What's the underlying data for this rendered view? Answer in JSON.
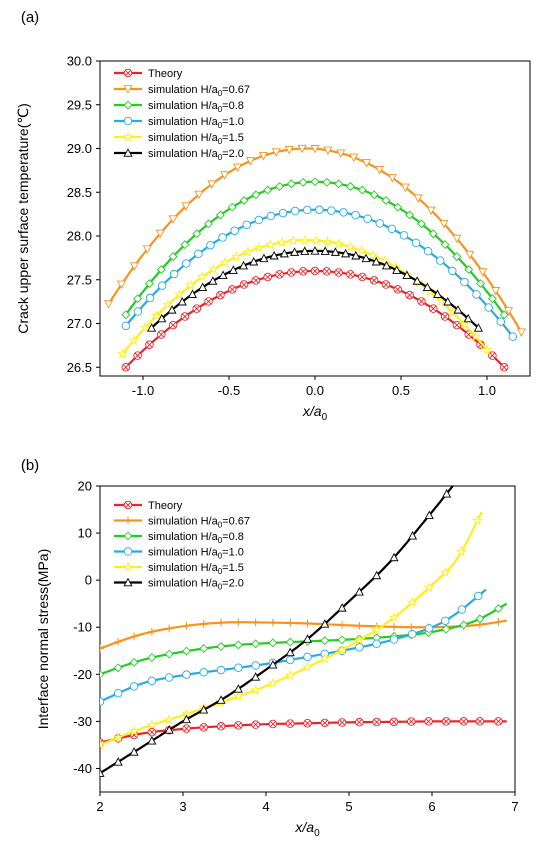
{
  "chart_data": [
    {
      "type": "line",
      "panel_label": "(a)",
      "xlabel": "x/a",
      "xlabel_sub": "0",
      "ylabel": "Crack upper surface temperature(℃)",
      "xlim": [
        -1.25,
        1.25
      ],
      "ylim": [
        26.4,
        30.0
      ],
      "x_ticks": [
        -1.0,
        -0.5,
        0.0,
        0.5,
        1.0
      ],
      "x_tick_labels": [
        "-1.0",
        "-0.5",
        "0.0",
        "0.5",
        "1.0"
      ],
      "y_ticks": [
        26.5,
        27.0,
        27.5,
        28.0,
        28.5,
        29.0,
        29.5,
        30.0
      ],
      "y_tick_labels": [
        "26.5",
        "27.0",
        "27.5",
        "28.0",
        "28.5",
        "29.0",
        "29.5",
        "30.0"
      ],
      "legend_position": "top-left",
      "grid": false,
      "series": [
        {
          "name": "Theory",
          "name_sub": "",
          "name_tail": "",
          "color": "#e8262a",
          "marker": "circle-x",
          "x_range": [
            -1.1,
            1.1
          ],
          "peak_x": 0.0,
          "peak": 27.6,
          "edge": 26.5,
          "exp": 2.0
        },
        {
          "name": "simulation H/a",
          "name_sub": "0",
          "name_tail": "=0.67",
          "color": "#f7931e",
          "marker": "triangle-down",
          "x_range": [
            -1.2,
            1.2
          ],
          "peak_x": -0.05,
          "peak": 29.0,
          "edge": 26.9,
          "exp": 2.0
        },
        {
          "name": "simulation H/a",
          "name_sub": "0",
          "name_tail": "=0.8",
          "color": "#22cc22",
          "marker": "diamond",
          "x_range": [
            -1.1,
            1.1
          ],
          "peak_x": 0.0,
          "peak": 28.62,
          "edge": 27.1,
          "exp": 2.0
        },
        {
          "name": "simulation H/a",
          "name_sub": "0",
          "name_tail": "=1.0",
          "color": "#29abe2",
          "marker": "circle",
          "x_range": [
            -1.1,
            1.15
          ],
          "peak_x": 0.0,
          "peak": 28.3,
          "edge": 26.85,
          "exp": 2.0
        },
        {
          "name": "simulation H/a",
          "name_sub": "0",
          "name_tail": "=1.5",
          "color": "#ffef1a",
          "marker": "star",
          "x_range": [
            -1.12,
            1.0
          ],
          "peak_x": -0.05,
          "peak": 27.95,
          "edge": 26.65,
          "exp": 2.0
        },
        {
          "name": "simulation H/a",
          "name_sub": "0",
          "name_tail": "=2.0",
          "color": "#000000",
          "marker": "triangle-up",
          "x_range": [
            -0.95,
            0.95
          ],
          "peak_x": 0.0,
          "peak": 27.83,
          "edge": 26.95,
          "exp": 2.0
        }
      ]
    },
    {
      "type": "line",
      "panel_label": "(b)",
      "xlabel": "x/a",
      "xlabel_sub": "0",
      "ylabel": "Interface normal stress(MPa)",
      "xlim": [
        2,
        7
      ],
      "ylim": [
        -45,
        20
      ],
      "x_ticks": [
        2,
        3,
        4,
        5,
        6,
        7
      ],
      "x_tick_labels": [
        "2",
        "3",
        "4",
        "5",
        "6",
        "7"
      ],
      "y_ticks": [
        -40,
        -30,
        -20,
        -10,
        0,
        10,
        20
      ],
      "y_tick_labels": [
        "-40",
        "-30",
        "-20",
        "-10",
        "0",
        "10",
        "20"
      ],
      "legend_position": "top-left",
      "grid": false,
      "series": [
        {
          "name": "Theory",
          "name_sub": "",
          "name_tail": "",
          "color": "#e8262a",
          "marker": "circle-x",
          "x": [
            2.0,
            2.5,
            3.0,
            3.5,
            4.0,
            4.5,
            5.0,
            5.5,
            6.0,
            6.5,
            6.9
          ],
          "y": [
            -34.5,
            -32.6,
            -31.6,
            -31.0,
            -30.6,
            -30.4,
            -30.2,
            -30.1,
            -30.0,
            -30.0,
            -30.0
          ]
        },
        {
          "name": "simulation H/a",
          "name_sub": "0",
          "name_tail": "=0.67",
          "color": "#f7931e",
          "marker": "plus",
          "x": [
            2.0,
            2.5,
            3.0,
            3.5,
            4.0,
            4.5,
            5.0,
            5.5,
            6.0,
            6.5,
            6.9
          ],
          "y": [
            -14.5,
            -11.5,
            -9.8,
            -9.0,
            -9.0,
            -9.2,
            -9.6,
            -9.9,
            -10.0,
            -9.6,
            -8.6
          ]
        },
        {
          "name": "simulation H/a",
          "name_sub": "0",
          "name_tail": "=0.8",
          "color": "#22cc22",
          "marker": "diamond",
          "x": [
            2.0,
            2.5,
            3.0,
            3.5,
            4.0,
            4.5,
            5.0,
            5.5,
            6.0,
            6.5,
            6.9
          ],
          "y": [
            -20.0,
            -17.0,
            -15.2,
            -14.0,
            -13.4,
            -13.0,
            -12.6,
            -12.0,
            -11.0,
            -8.8,
            -5.0
          ]
        },
        {
          "name": "simulation H/a",
          "name_sub": "0",
          "name_tail": "=1.0",
          "color": "#29abe2",
          "marker": "circle",
          "x": [
            2.0,
            2.5,
            3.0,
            3.5,
            4.0,
            4.5,
            5.0,
            5.5,
            6.0,
            6.3,
            6.65
          ],
          "y": [
            -25.8,
            -22.0,
            -20.2,
            -19.0,
            -17.8,
            -16.3,
            -14.7,
            -12.8,
            -10.0,
            -7.0,
            -2.0
          ]
        },
        {
          "name": "simulation H/a",
          "name_sub": "0",
          "name_tail": "=1.5",
          "color": "#ffef1a",
          "marker": "star",
          "x": [
            2.0,
            2.5,
            3.0,
            3.5,
            4.0,
            4.5,
            5.0,
            5.5,
            6.0,
            6.3,
            6.6
          ],
          "y": [
            -35.0,
            -31.5,
            -28.7,
            -25.7,
            -22.5,
            -18.5,
            -14.0,
            -8.5,
            -1.0,
            4.5,
            14.5
          ]
        },
        {
          "name": "simulation H/a",
          "name_sub": "0",
          "name_tail": "=2.0",
          "color": "#000000",
          "marker": "triangle-up",
          "x": [
            2.0,
            2.5,
            3.0,
            3.5,
            4.0,
            4.5,
            5.0,
            5.5,
            6.0,
            6.25
          ],
          "y": [
            -41.0,
            -35.5,
            -30.0,
            -25.0,
            -19.0,
            -12.5,
            -4.5,
            4.0,
            14.5,
            20.0
          ]
        }
      ]
    }
  ]
}
